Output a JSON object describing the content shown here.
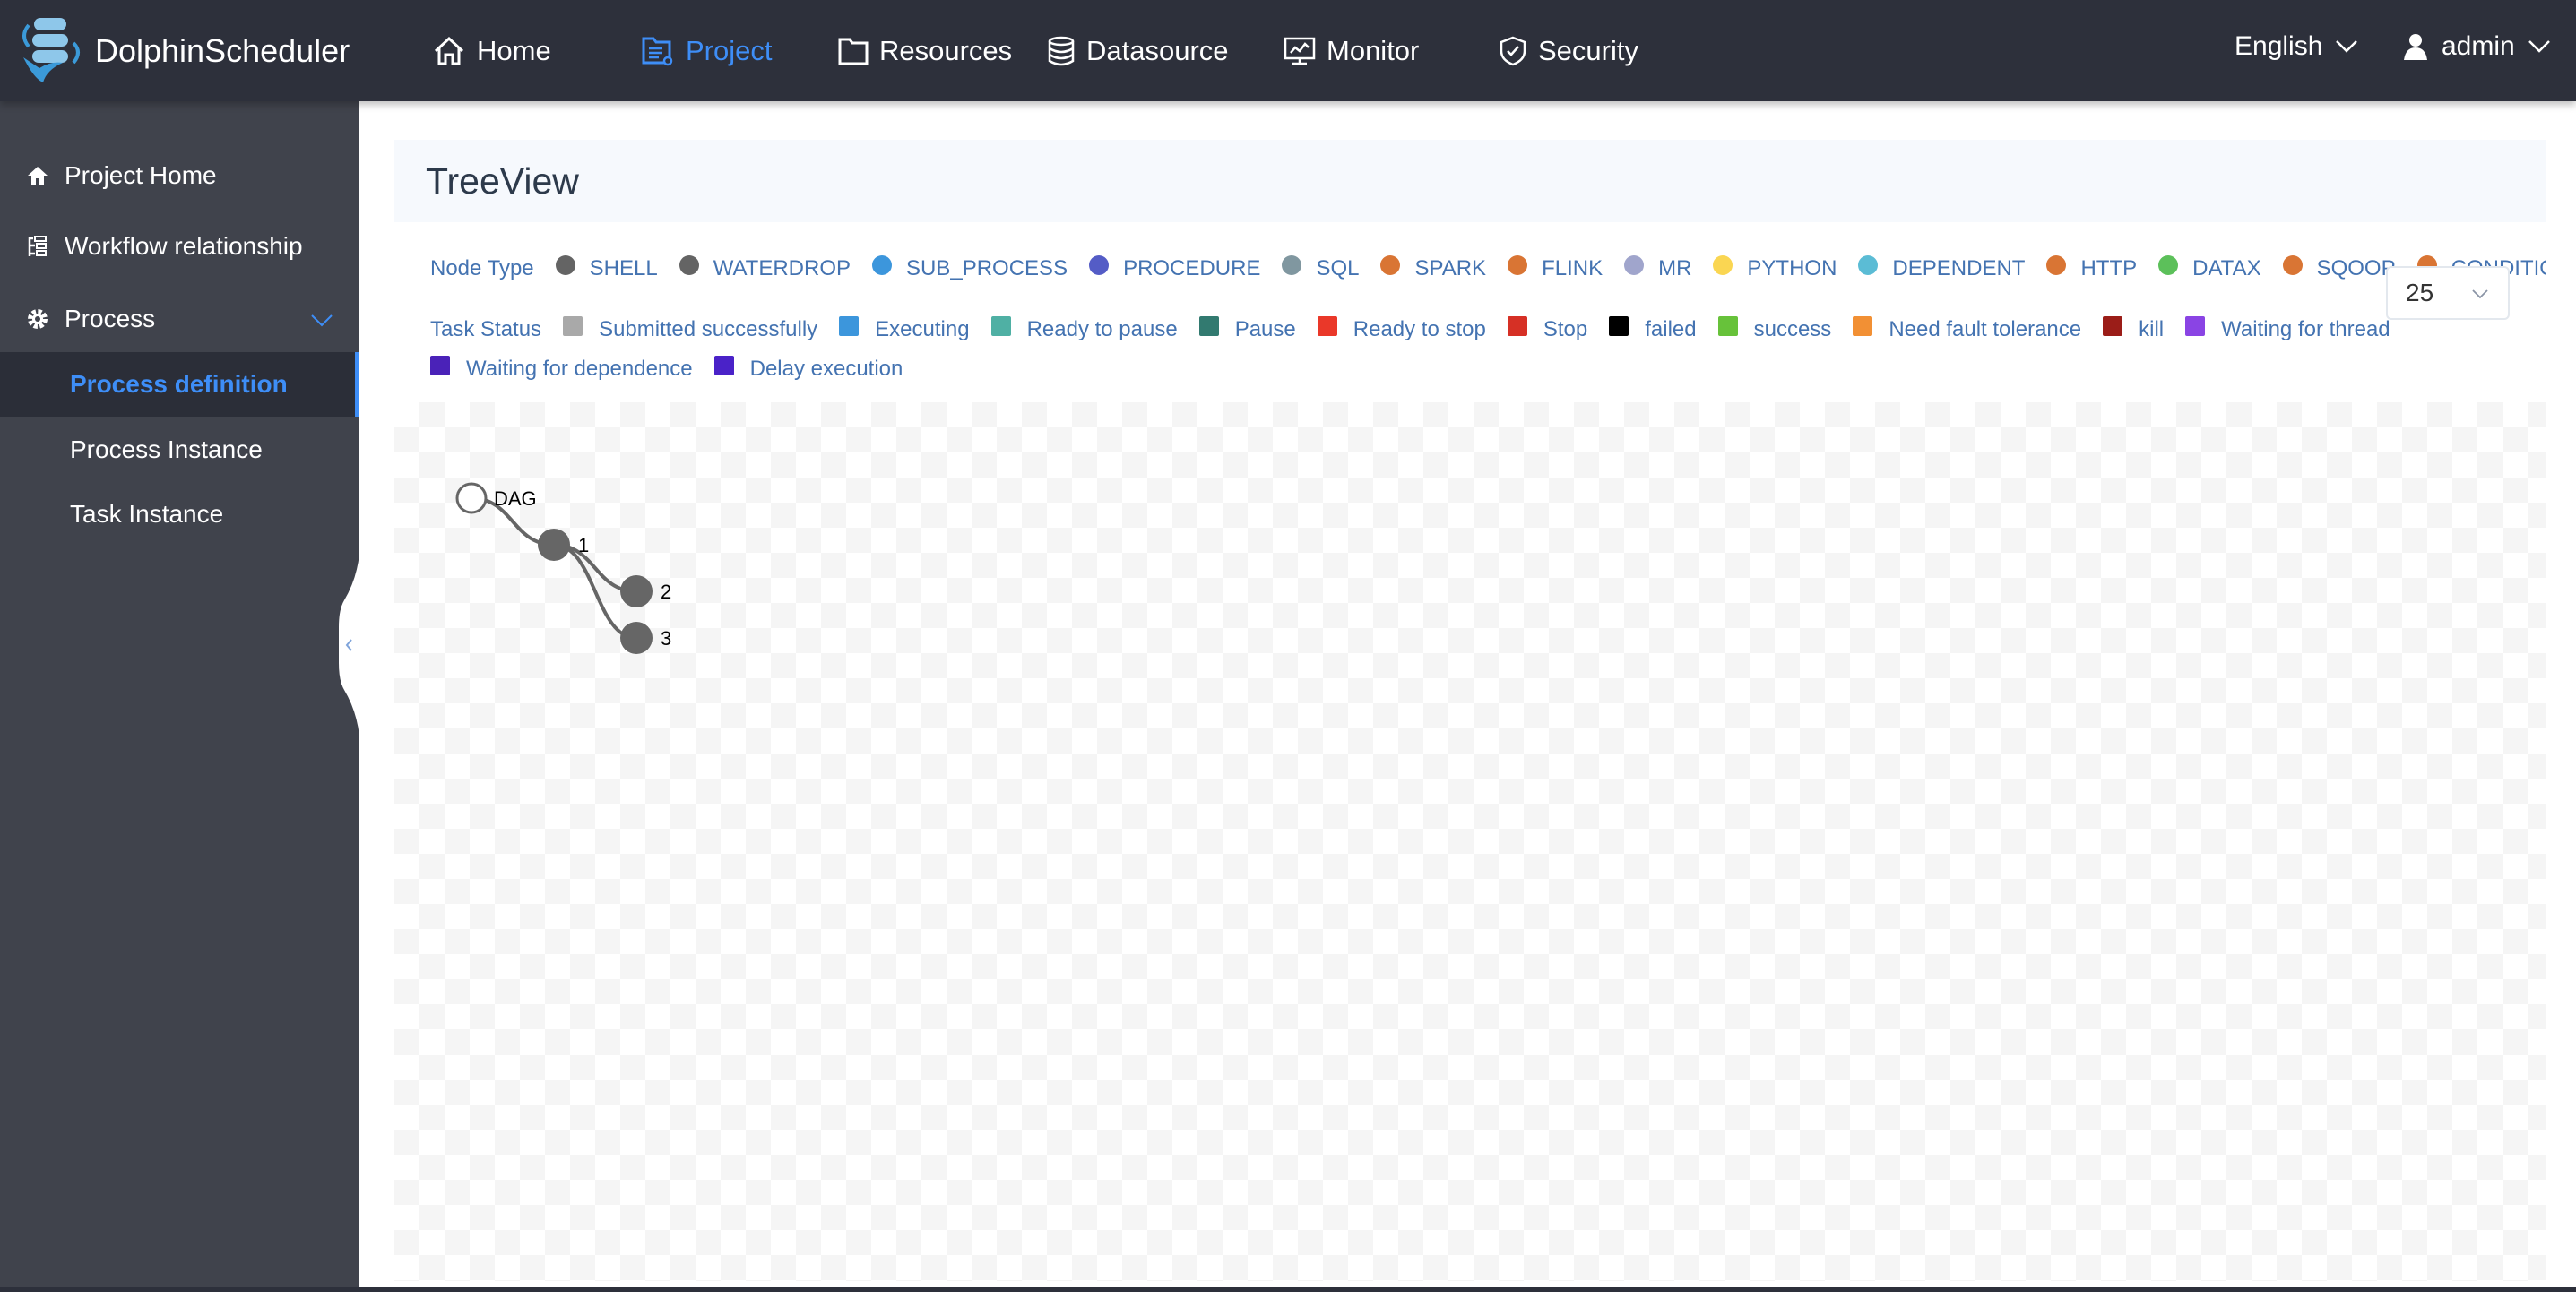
{
  "header": {
    "brand": "DolphinScheduler",
    "nav": [
      {
        "label": "Home",
        "icon": "home-icon",
        "active": false
      },
      {
        "label": "Project",
        "icon": "project-icon",
        "active": true
      },
      {
        "label": "Resources",
        "icon": "folder-icon",
        "active": false
      },
      {
        "label": "Datasource",
        "icon": "database-icon",
        "active": false
      },
      {
        "label": "Monitor",
        "icon": "monitor-icon",
        "active": false
      },
      {
        "label": "Security",
        "icon": "shield-icon",
        "active": false
      }
    ],
    "language": "English",
    "user": "admin",
    "accent_color": "#3e8ef7"
  },
  "sidebar": {
    "items": [
      {
        "label": "Project Home",
        "icon": "home-icon"
      },
      {
        "label": "Workflow relationship",
        "icon": "tree-list-icon"
      },
      {
        "label": "Process",
        "icon": "gear-icon",
        "expanded": true
      },
      {
        "label": "Process definition",
        "active": true
      },
      {
        "label": "Process Instance"
      },
      {
        "label": "Task Instance"
      }
    ]
  },
  "main": {
    "title": "TreeView",
    "node_type_label": "Node Type",
    "node_types": [
      {
        "label": "SHELL",
        "color": "#646464"
      },
      {
        "label": "WATERDROP",
        "color": "#646464"
      },
      {
        "label": "SUB_PROCESS",
        "color": "#3c96dc"
      },
      {
        "label": "PROCEDURE",
        "color": "#545cc6"
      },
      {
        "label": "SQL",
        "color": "#8097a0"
      },
      {
        "label": "SPARK",
        "color": "#d97534"
      },
      {
        "label": "FLINK",
        "color": "#d97534"
      },
      {
        "label": "MR",
        "color": "#a0a5cc"
      },
      {
        "label": "PYTHON",
        "color": "#fad652"
      },
      {
        "label": "DEPENDENT",
        "color": "#5bbcd5"
      },
      {
        "label": "HTTP",
        "color": "#d97534"
      },
      {
        "label": "DATAX",
        "color": "#5cc05a"
      },
      {
        "label": "SQOOP",
        "color": "#d97534"
      },
      {
        "label": "CONDITIONS",
        "color": "#d97534"
      }
    ],
    "task_status_label": "Task Status",
    "task_statuses": [
      {
        "label": "Submitted successfully",
        "color": "#a9a9a9"
      },
      {
        "label": "Executing",
        "color": "#3c96dc"
      },
      {
        "label": "Ready to pause",
        "color": "#4fb0a4"
      },
      {
        "label": "Pause",
        "color": "#327a70"
      },
      {
        "label": "Ready to stop",
        "color": "#ea3829"
      },
      {
        "label": "Stop",
        "color": "#d63025"
      },
      {
        "label": "failed",
        "color": "#000000"
      },
      {
        "label": "success",
        "color": "#67c23a"
      },
      {
        "label": "Need fault tolerance",
        "color": "#f29034"
      },
      {
        "label": "kill",
        "color": "#9b1d18"
      },
      {
        "label": "Waiting for thread",
        "color": "#8a44e4"
      },
      {
        "label": "Waiting for dependence",
        "color": "#4a22b8"
      },
      {
        "label": "Delay execution",
        "color": "#4a22c8"
      }
    ],
    "limit_select": "25",
    "tree": {
      "name": "DAG",
      "type": "root",
      "children": [
        {
          "name": "1",
          "type": "SHELL",
          "children": [
            {
              "name": "2",
              "type": "SHELL"
            },
            {
              "name": "3",
              "type": "SHELL"
            }
          ]
        }
      ]
    }
  }
}
